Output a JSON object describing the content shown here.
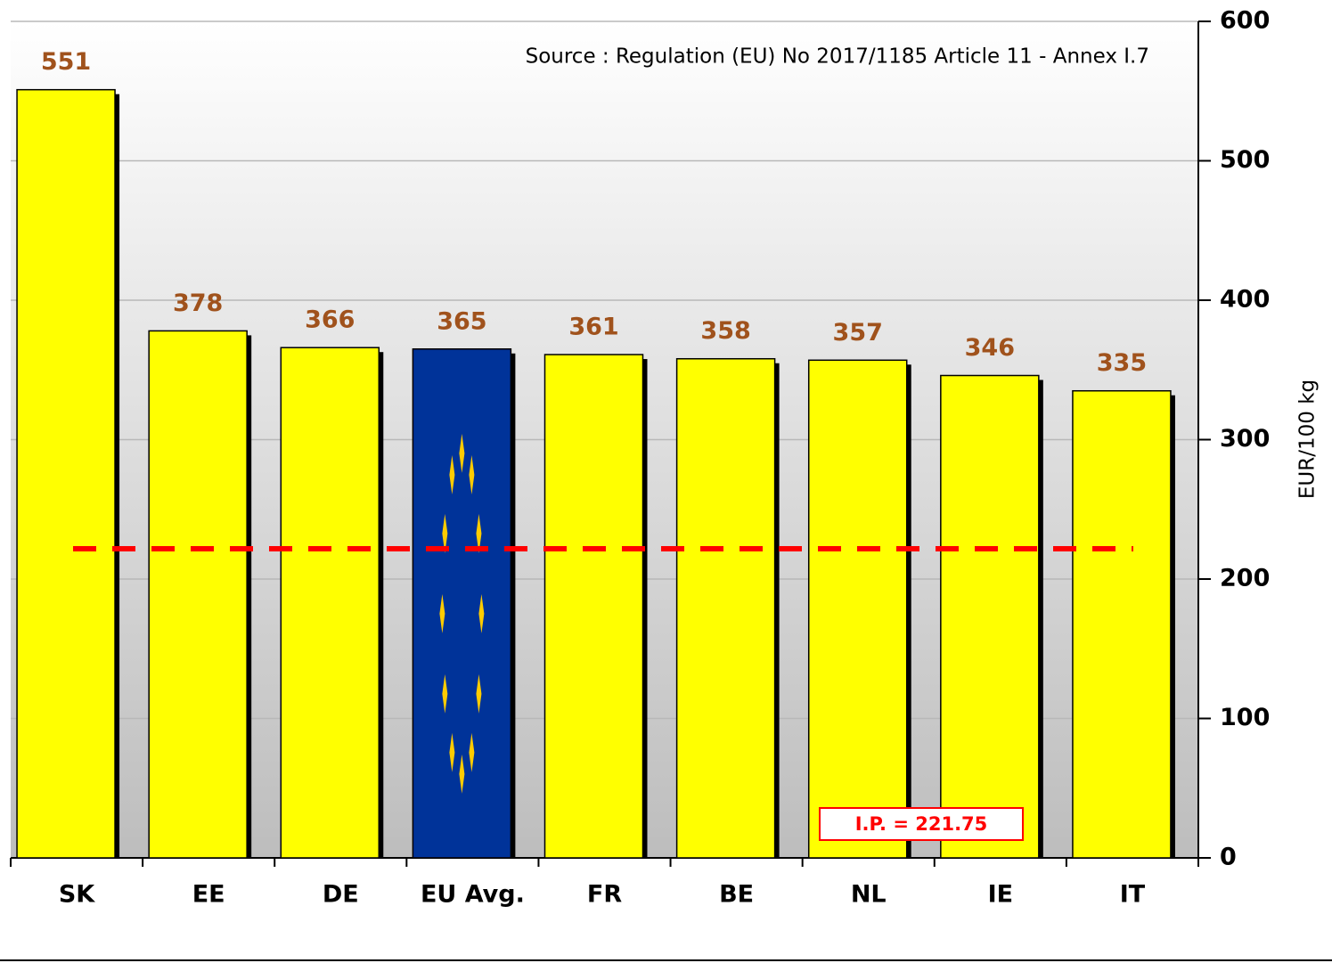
{
  "chart_data": {
    "type": "bar",
    "categories": [
      "SK",
      "EE",
      "DE",
      "EU Avg.",
      "FR",
      "BE",
      "NL",
      "IE",
      "IT"
    ],
    "values": [
      551,
      378,
      366,
      365,
      361,
      358,
      357,
      346,
      335
    ],
    "colors": [
      "#ffff00",
      "#ffff00",
      "#ffff00",
      "#003399",
      "#ffff00",
      "#ffff00",
      "#ffff00",
      "#ffff00",
      "#ffff00"
    ],
    "ylim": [
      0,
      600
    ],
    "yticks": [
      0,
      100,
      200,
      300,
      400,
      500,
      600
    ],
    "y_axis_side": "right",
    "ylabel": "EUR/100 kg",
    "grid": true,
    "annotation": "Source : Regulation (EU) No 2017/1185 Article 11 - Annex I.7",
    "reference_line": {
      "value": 221.75,
      "label": "I.P. = 221.75",
      "color": "#ff0000"
    }
  }
}
